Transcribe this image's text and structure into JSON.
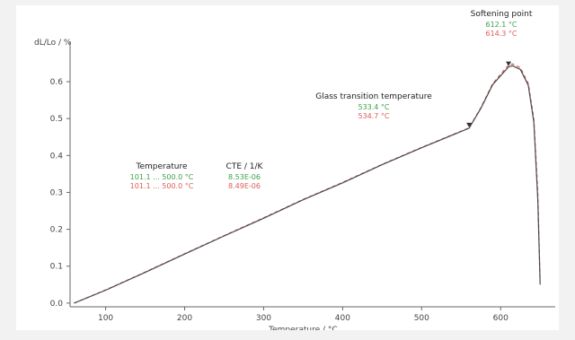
{
  "chart_data": {
    "type": "line",
    "title": "",
    "xlabel": "Temperature / °C",
    "ylabel": "dL/Lo / %",
    "xlim": [
      55,
      660
    ],
    "ylim": [
      -0.01,
      0.69
    ],
    "x_ticks": [
      100,
      200,
      300,
      400,
      500,
      600
    ],
    "x_tick_labels": [
      "100",
      "200",
      "300",
      "400",
      "500",
      "600"
    ],
    "y_ticks": [
      0.0,
      0.1,
      0.2,
      0.3,
      0.4,
      0.5,
      0.6
    ],
    "y_tick_labels": [
      "0.0",
      "0.1",
      "0.2",
      "0.3",
      "0.4",
      "0.5",
      "0.6"
    ],
    "grid": false,
    "series": [
      {
        "color": "#e05a5a",
        "dash": "4 3",
        "x": [
          60,
          100,
          150,
          200,
          250,
          300,
          350,
          400,
          450,
          500,
          560,
          575,
          590,
          610,
          615,
          625,
          635,
          642,
          647,
          650
        ],
        "y": [
          0.0,
          0.036,
          0.084,
          0.134,
          0.183,
          0.231,
          0.281,
          0.327,
          0.376,
          0.422,
          0.475,
          0.53,
          0.595,
          0.645,
          0.648,
          0.638,
          0.595,
          0.5,
          0.3,
          0.06
        ]
      },
      {
        "color": "#4a4a4a",
        "dash": "",
        "x": [
          60,
          100,
          150,
          200,
          250,
          300,
          350,
          400,
          450,
          500,
          560,
          575,
          590,
          610,
          615,
          625,
          635,
          642,
          647,
          650
        ],
        "y": [
          0.0,
          0.035,
          0.083,
          0.133,
          0.182,
          0.23,
          0.28,
          0.326,
          0.375,
          0.421,
          0.474,
          0.528,
          0.592,
          0.64,
          0.643,
          0.633,
          0.59,
          0.49,
          0.28,
          0.05
        ]
      }
    ],
    "annotations": [
      {
        "title": "Softening point",
        "values": [
          {
            "text": "612.1 °C",
            "color": "#3aa04a"
          },
          {
            "text": "614.3 °C",
            "color": "#e05a5a"
          }
        ]
      },
      {
        "title": "Glass transition temperature",
        "values": [
          {
            "text": "533.4 °C",
            "color": "#3aa04a"
          },
          {
            "text": "534.7 °C",
            "color": "#e05a5a"
          }
        ]
      },
      {
        "title": "Temperature",
        "values": [
          {
            "text": "101.1 ... 500.0 °C",
            "color": "#3aa04a"
          },
          {
            "text": "101.1 ... 500.0 °C",
            "color": "#e05a5a"
          }
        ]
      },
      {
        "title": "CTE / 1/K",
        "values": [
          {
            "text": "8.53E-06",
            "color": "#3aa04a"
          },
          {
            "text": "8.49E-06",
            "color": "#e05a5a"
          }
        ]
      }
    ]
  }
}
